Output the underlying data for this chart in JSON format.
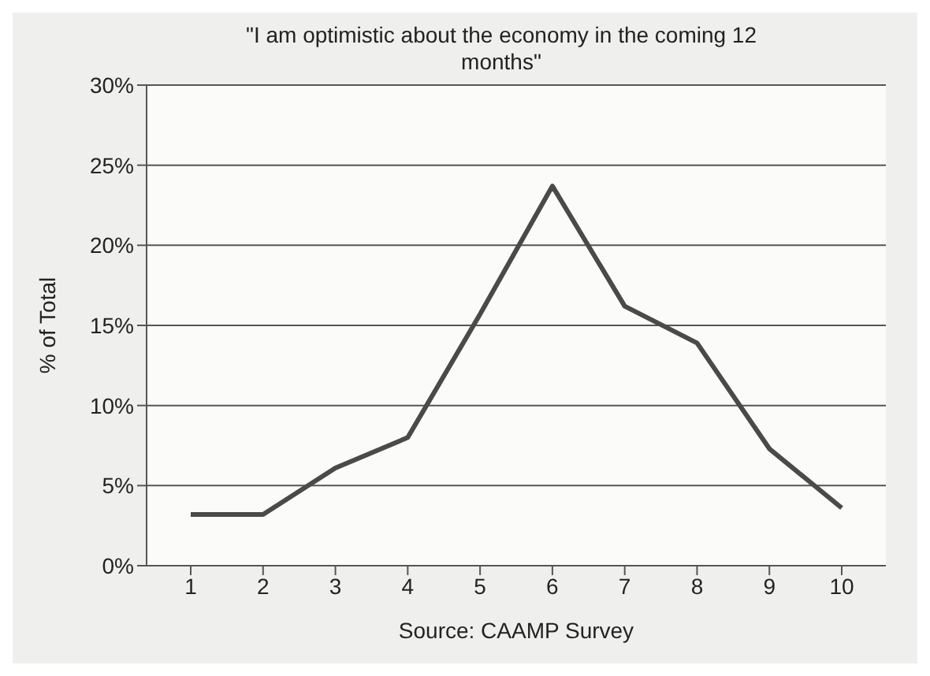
{
  "chart_data": {
    "type": "line",
    "title": "\"I am optimistic about the economy in the coming 12 months\"",
    "ylabel": "% of Total",
    "xlabel": "Source: CAAMP Survey",
    "categories": [
      "1",
      "2",
      "3",
      "4",
      "5",
      "6",
      "7",
      "8",
      "9",
      "10"
    ],
    "series": [
      {
        "color": "#4a4a4a",
        "values": [
          3.2,
          3.2,
          6.1,
          8.0,
          15.7,
          23.7,
          16.2,
          13.9,
          7.3,
          3.6
        ]
      }
    ],
    "ylim": [
      0,
      30
    ],
    "yticks": [
      {
        "value": 0,
        "label": "0%"
      },
      {
        "value": 5,
        "label": "5%"
      },
      {
        "value": 10,
        "label": "10%"
      },
      {
        "value": 15,
        "label": "15%"
      },
      {
        "value": 20,
        "label": "20%"
      },
      {
        "value": 25,
        "label": "25%"
      },
      {
        "value": 30,
        "label": "30%"
      }
    ],
    "grid": "y",
    "marker": "none",
    "line_style": "solid"
  }
}
